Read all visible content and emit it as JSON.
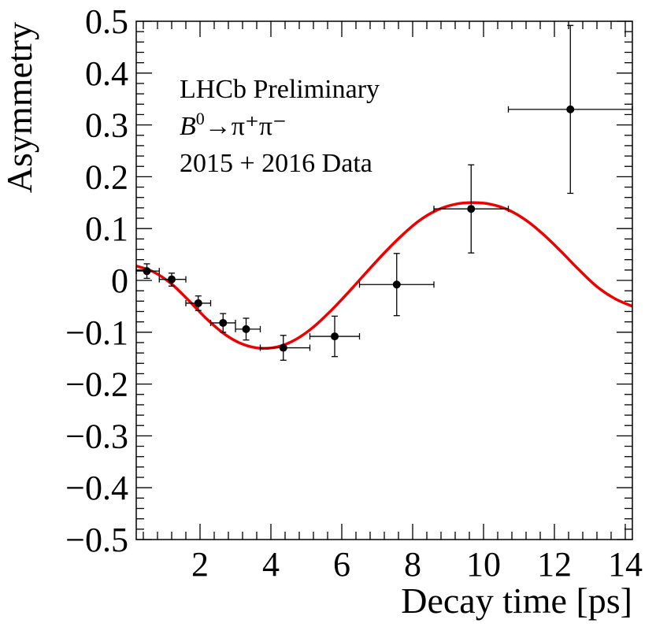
{
  "chart_data": {
    "type": "scatter",
    "ylabel": "Asymmetry",
    "xlabel": "Decay time [ps]",
    "xlim": [
      0.2,
      14.2
    ],
    "ylim": [
      -0.5,
      0.5
    ],
    "x_ticks": [
      2,
      4,
      6,
      8,
      10,
      12,
      14
    ],
    "x_tick_labels": [
      "2",
      "4",
      "6",
      "8",
      "10",
      "12",
      "14"
    ],
    "y_ticks": [
      -0.5,
      -0.4,
      -0.3,
      -0.2,
      -0.1,
      0,
      0.1,
      0.2,
      0.3,
      0.4,
      0.5
    ],
    "y_tick_labels": [
      "−0.5",
      "−0.4",
      "−0.3",
      "−0.2",
      "−0.1",
      "0",
      "0.1",
      "0.2",
      "0.3",
      "0.4",
      "0.5"
    ],
    "annotations": {
      "line1": "LHCb Preliminary",
      "decay_b": "B",
      "decay_b_sup": "0",
      "decay_rest": "→π⁺π⁻",
      "line3": "2015 + 2016 Data"
    },
    "grid": false,
    "legend": "none",
    "colors": {
      "fit": "#ee0000",
      "data": "#000000"
    },
    "points": [
      {
        "x": 0.5,
        "y": 0.018,
        "xlo": 0.2,
        "xhi": 0.85,
        "ylo": 0.004,
        "yhi": 0.032
      },
      {
        "x": 1.2,
        "y": 0.002,
        "xlo": 0.85,
        "xhi": 1.6,
        "ylo": -0.011,
        "yhi": 0.014
      },
      {
        "x": 1.95,
        "y": -0.044,
        "xlo": 1.6,
        "xhi": 2.3,
        "ylo": -0.058,
        "yhi": -0.03
      },
      {
        "x": 2.65,
        "y": -0.082,
        "xlo": 2.3,
        "xhi": 3.0,
        "ylo": -0.1,
        "yhi": -0.064
      },
      {
        "x": 3.3,
        "y": -0.094,
        "xlo": 3.0,
        "xhi": 3.7,
        "ylo": -0.115,
        "yhi": -0.073
      },
      {
        "x": 4.35,
        "y": -0.13,
        "xlo": 3.7,
        "xhi": 5.1,
        "ylo": -0.154,
        "yhi": -0.106
      },
      {
        "x": 5.8,
        "y": -0.108,
        "xlo": 5.1,
        "xhi": 6.5,
        "ylo": -0.147,
        "yhi": -0.069
      },
      {
        "x": 7.55,
        "y": -0.008,
        "xlo": 6.5,
        "xhi": 8.6,
        "ylo": -0.068,
        "yhi": 0.052
      },
      {
        "x": 9.65,
        "y": 0.138,
        "xlo": 8.6,
        "xhi": 10.7,
        "ylo": 0.053,
        "yhi": 0.223
      },
      {
        "x": 12.45,
        "y": 0.33,
        "xlo": 10.7,
        "xhi": 14.2,
        "ylo": 0.168,
        "yhi": 0.492
      }
    ],
    "fit": {
      "x": [
        0.2,
        0.7,
        1.2,
        1.7,
        2.2,
        2.7,
        3.2,
        3.7,
        4.2,
        4.7,
        5.2,
        5.7,
        6.2,
        6.7,
        7.2,
        7.7,
        8.2,
        8.7,
        9.2,
        9.7,
        10.2,
        10.7,
        11.2,
        11.7,
        12.2,
        12.7,
        13.2,
        13.7,
        14.2
      ],
      "y": [
        0.028,
        0.016,
        -0.007,
        -0.04,
        -0.075,
        -0.104,
        -0.123,
        -0.131,
        -0.128,
        -0.114,
        -0.09,
        -0.058,
        -0.022,
        0.016,
        0.053,
        0.087,
        0.116,
        0.136,
        0.147,
        0.15,
        0.147,
        0.136,
        0.116,
        0.088,
        0.055,
        0.02,
        -0.012,
        -0.035,
        -0.05
      ]
    }
  }
}
